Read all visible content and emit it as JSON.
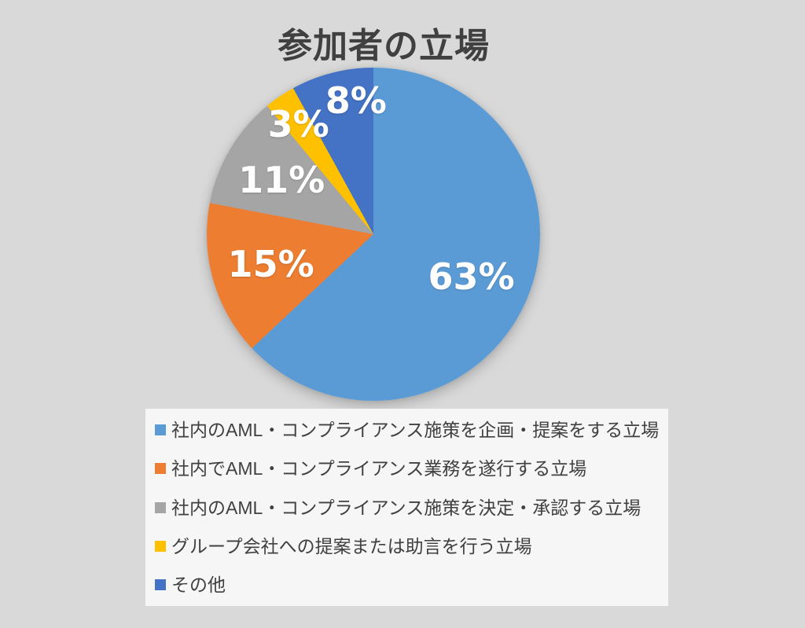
{
  "page": {
    "background": "#d9d9d9"
  },
  "chart_data": {
    "type": "pie",
    "title": "参加者の立場",
    "categories": [
      "社内のAML・コンプライアンス施策を企画・提案をする立場",
      "社内でAML・コンプライアンス業務を遂行する立場",
      "社内のAML・コンプライアンス施策を決定・承認する立場",
      "グループ会社への提案または助言を行う立場",
      "その他"
    ],
    "values": [
      63,
      15,
      11,
      3,
      8
    ],
    "data_labels": [
      "63%",
      "15%",
      "11%",
      "3%",
      "8%"
    ],
    "colors": [
      "#5B9BD5",
      "#ED7D31",
      "#A5A5A5",
      "#FFC000",
      "#4472C4"
    ],
    "start_angle_deg": 0,
    "direction": "clockwise",
    "legend_position": "bottom",
    "data_label_color": "#FFFFFF",
    "title_color": "#404040",
    "legend_text_color": "#404040",
    "legend_background": "#F6F6F6",
    "page_background": "#D9D9D9"
  }
}
